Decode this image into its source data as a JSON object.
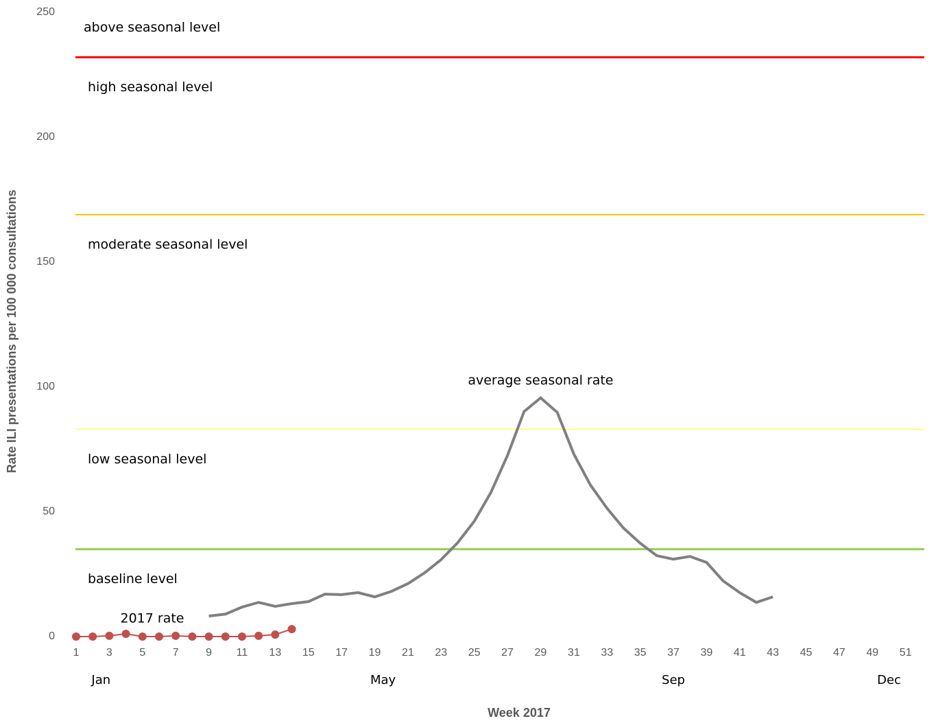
{
  "chart_data": {
    "type": "line",
    "x_title": "Week 2017",
    "y_title": "Rate ILI presentations per 100 000 consultations",
    "xlim": [
      0.5,
      52.5
    ],
    "xticks": [
      1,
      3,
      5,
      7,
      9,
      11,
      13,
      15,
      17,
      19,
      21,
      23,
      25,
      27,
      29,
      31,
      33,
      35,
      37,
      39,
      41,
      43,
      45,
      47,
      49,
      51
    ],
    "month_ticks": [
      {
        "value": 2.5,
        "label": "Jan"
      },
      {
        "value": 19.5,
        "label": "May"
      },
      {
        "value": 37,
        "label": "Sep"
      },
      {
        "value": 50,
        "label": "Dec"
      }
    ],
    "ylim": [
      0,
      250
    ],
    "yticks": [
      0,
      50,
      100,
      150,
      200,
      250
    ],
    "reference_lines": [
      {
        "value": 232,
        "color": "#ff0000",
        "label_above": "above seasonal level",
        "label": "high seasonal level"
      },
      {
        "value": 169,
        "color": "#ffc000",
        "label": "moderate seasonal level"
      },
      {
        "value": 83,
        "color": "#ffff00",
        "label": "low seasonal level"
      },
      {
        "value": 35,
        "color": "#92d050",
        "label": "baseline level"
      }
    ],
    "series": [
      {
        "name": "average seasonal rate",
        "color": "#808080",
        "x": [
          9,
          10,
          11,
          12,
          13,
          14,
          15,
          16,
          17,
          18,
          19,
          20,
          21,
          22,
          23,
          24,
          25,
          26,
          27,
          28,
          29,
          30,
          31,
          32,
          33,
          34,
          35,
          36,
          37,
          38,
          39,
          40,
          41,
          42,
          43
        ],
        "values": [
          8.2,
          9,
          11.8,
          13.7,
          12.1,
          13.2,
          14,
          17,
          16.8,
          17.6,
          15.9,
          18.1,
          21.2,
          25.5,
          30.8,
          37.6,
          46.2,
          57.7,
          72.5,
          90.1,
          95.6,
          89.8,
          73.1,
          60.7,
          51.4,
          43.4,
          37.4,
          32.4,
          31,
          32.1,
          29.7,
          22.3,
          17.6,
          13.7,
          15.9
        ]
      },
      {
        "name": "2017 rate",
        "color": "#c0504d",
        "x": [
          1,
          2,
          3,
          4,
          5,
          6,
          7,
          8,
          9,
          10,
          11,
          12,
          13,
          14
        ],
        "values": [
          0,
          0,
          0.3,
          1.1,
          0,
          0,
          0.3,
          0,
          0,
          0,
          0,
          0.3,
          0.8,
          3.0
        ]
      }
    ]
  }
}
